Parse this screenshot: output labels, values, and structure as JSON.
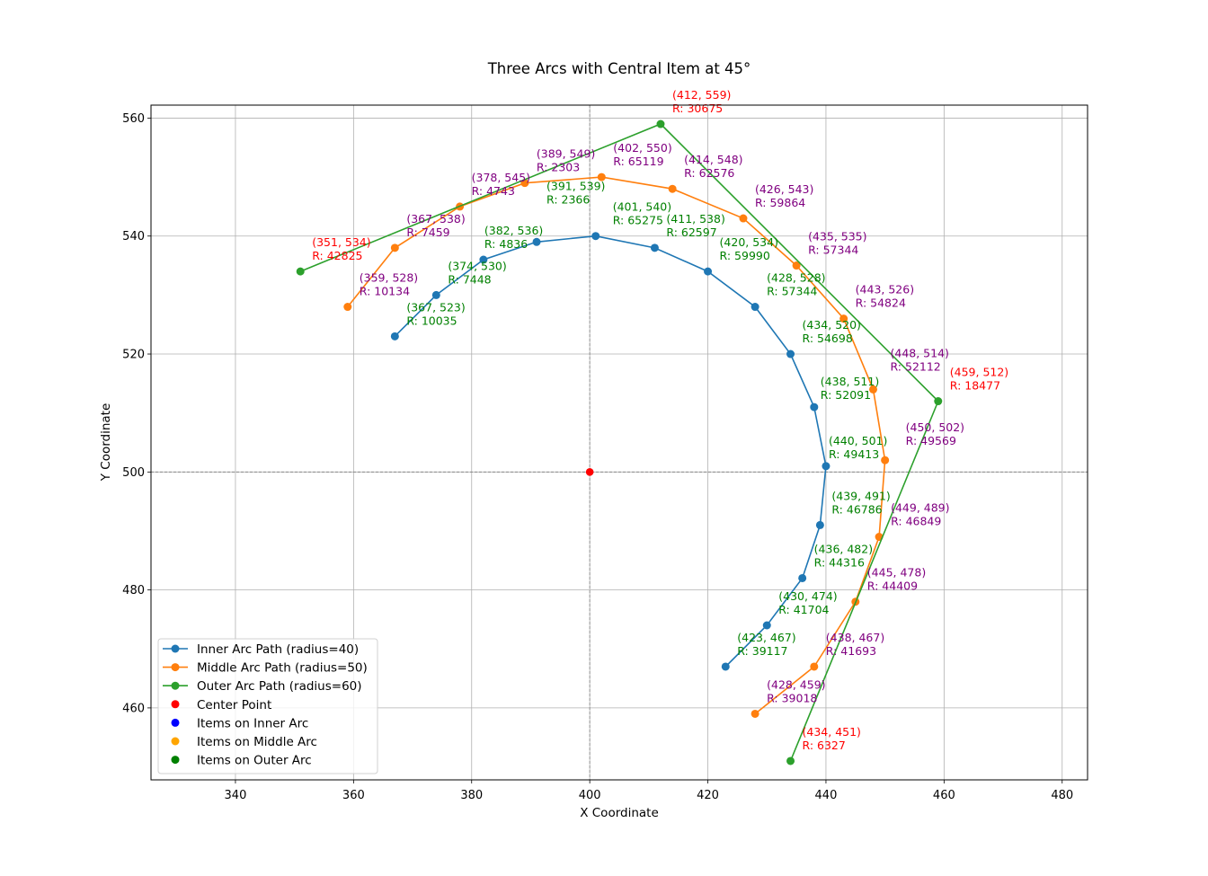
{
  "chart_data": {
    "type": "line",
    "title": "Three Arcs with Central Item at 45°",
    "xlabel": "X Coordinate",
    "ylabel": "Y Coordinate",
    "xlim": [
      325.7,
      484.3
    ],
    "ylim": [
      447.8,
      562.2
    ],
    "xticks": [
      340,
      360,
      380,
      400,
      420,
      440,
      460,
      480
    ],
    "yticks": [
      460,
      480,
      500,
      520,
      540,
      560
    ],
    "grid": true,
    "legend_position": "lower-left",
    "center_point": {
      "x": 400,
      "y": 500,
      "color": "#ff0000",
      "label": "Center Point"
    },
    "series": [
      {
        "name": "Inner Arc Path (radius=40)",
        "color": "#1f77b4",
        "label_color": "#008000",
        "points": [
          {
            "x": 367,
            "y": 523,
            "r": 10035
          },
          {
            "x": 374,
            "y": 530,
            "r": 7448
          },
          {
            "x": 382,
            "y": 536,
            "r": 4836
          },
          {
            "x": 391,
            "y": 539,
            "r": 2366
          },
          {
            "x": 401,
            "y": 540,
            "r": 65275
          },
          {
            "x": 411,
            "y": 538,
            "r": 62597
          },
          {
            "x": 420,
            "y": 534,
            "r": 59990
          },
          {
            "x": 428,
            "y": 528,
            "r": 57344
          },
          {
            "x": 434,
            "y": 520,
            "r": 54698
          },
          {
            "x": 438,
            "y": 511,
            "r": 52091
          },
          {
            "x": 440,
            "y": 501,
            "r": 49413
          },
          {
            "x": 439,
            "y": 491,
            "r": 46786
          },
          {
            "x": 436,
            "y": 482,
            "r": 44316
          },
          {
            "x": 430,
            "y": 474,
            "r": 41704
          },
          {
            "x": 423,
            "y": 467,
            "r": 39117
          }
        ]
      },
      {
        "name": "Middle Arc Path (radius=50)",
        "color": "#ff7f0e",
        "label_color": "#800080",
        "points": [
          {
            "x": 359,
            "y": 528,
            "r": 10134
          },
          {
            "x": 367,
            "y": 538,
            "r": 7459
          },
          {
            "x": 378,
            "y": 545,
            "r": 4743
          },
          {
            "x": 389,
            "y": 549,
            "r": 2303
          },
          {
            "x": 402,
            "y": 550,
            "r": 65119
          },
          {
            "x": 414,
            "y": 548,
            "r": 62576
          },
          {
            "x": 426,
            "y": 543,
            "r": 59864
          },
          {
            "x": 435,
            "y": 535,
            "r": 57344
          },
          {
            "x": 443,
            "y": 526,
            "r": 54824
          },
          {
            "x": 448,
            "y": 514,
            "r": 52112
          },
          {
            "x": 450,
            "y": 502,
            "r": 49569
          },
          {
            "x": 449,
            "y": 489,
            "r": 46849
          },
          {
            "x": 445,
            "y": 478,
            "r": 44409
          },
          {
            "x": 438,
            "y": 467,
            "r": 41693
          },
          {
            "x": 428,
            "y": 459,
            "r": 39018
          }
        ]
      },
      {
        "name": "Outer Arc Path (radius=60)",
        "color": "#2ca02c",
        "label_color": "#ff0000",
        "points": [
          {
            "x": 351,
            "y": 534,
            "r": 42825
          },
          {
            "x": 412,
            "y": 559,
            "r": 30675
          },
          {
            "x": 459,
            "y": 512,
            "r": 18477
          },
          {
            "x": 434,
            "y": 451,
            "r": 6327
          }
        ]
      }
    ],
    "legend": [
      {
        "label": "Inner Arc Path (radius=40)",
        "kind": "line",
        "color": "#1f77b4"
      },
      {
        "label": "Middle Arc Path (radius=50)",
        "kind": "line",
        "color": "#ff7f0e"
      },
      {
        "label": "Outer Arc Path (radius=60)",
        "kind": "line",
        "color": "#2ca02c"
      },
      {
        "label": "Center Point",
        "kind": "dot",
        "color": "#ff0000"
      },
      {
        "label": "Items on Inner Arc",
        "kind": "dot",
        "color": "#0000ff"
      },
      {
        "label": "Items on Middle Arc",
        "kind": "dot",
        "color": "#ffa500"
      },
      {
        "label": "Items on Outer Arc",
        "kind": "dot",
        "color": "#008000"
      }
    ]
  }
}
